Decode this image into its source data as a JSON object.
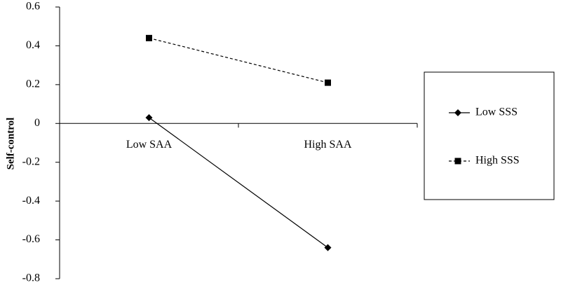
{
  "chart_data": {
    "type": "line",
    "y_label": "Self-control",
    "categories": [
      "Low SAA",
      "High SAA"
    ],
    "series": [
      {
        "name": "Low SSS",
        "color": "#000000",
        "marker": "diamond",
        "line_style": "solid",
        "values": [
          0.03,
          -0.64
        ]
      },
      {
        "name": "High SSS",
        "color": "#000000",
        "marker": "square",
        "line_style": "dashed",
        "values": [
          0.44,
          0.21
        ]
      }
    ],
    "ylim": [
      -0.8,
      0.6
    ],
    "yticks": [
      0.6,
      0.4,
      0.2,
      0,
      -0.2,
      -0.4,
      -0.6,
      -0.8
    ],
    "legend": "right"
  }
}
